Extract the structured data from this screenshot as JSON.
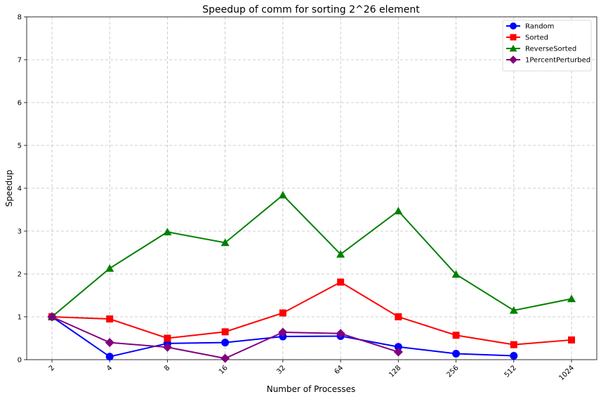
{
  "chart_data": {
    "type": "line",
    "title": "Speedup of comm for sorting 2^26 element",
    "xlabel": "Number of Processes",
    "ylabel": "Speedup",
    "categories": [
      "2",
      "4",
      "8",
      "16",
      "32",
      "64",
      "128",
      "256",
      "512",
      "1024"
    ],
    "ylim": [
      0,
      8
    ],
    "yticks": [
      "0",
      "1",
      "2",
      "3",
      "4",
      "5",
      "6",
      "7",
      "8"
    ],
    "grid": true,
    "legend_position": "top-right",
    "series": [
      {
        "name": "Random",
        "color": "#0000ff",
        "marker": "circle",
        "values": [
          1.0,
          0.07,
          0.38,
          0.4,
          0.54,
          0.55,
          0.3,
          0.14,
          0.09,
          null
        ]
      },
      {
        "name": "Sorted",
        "color": "#ff0000",
        "marker": "square",
        "values": [
          1.0,
          0.95,
          0.5,
          0.65,
          1.09,
          1.81,
          1.0,
          0.57,
          0.35,
          0.46
        ]
      },
      {
        "name": "ReverseSorted",
        "color": "#008000",
        "marker": "triangle",
        "values": [
          1.0,
          2.13,
          2.98,
          2.73,
          3.84,
          2.46,
          3.47,
          1.99,
          1.15,
          1.42
        ]
      },
      {
        "name": "1PercentPerturbed",
        "color": "#800080",
        "marker": "diamond",
        "values": [
          1.0,
          0.4,
          0.29,
          0.03,
          0.64,
          0.61,
          0.18,
          null,
          null,
          null
        ]
      }
    ]
  }
}
